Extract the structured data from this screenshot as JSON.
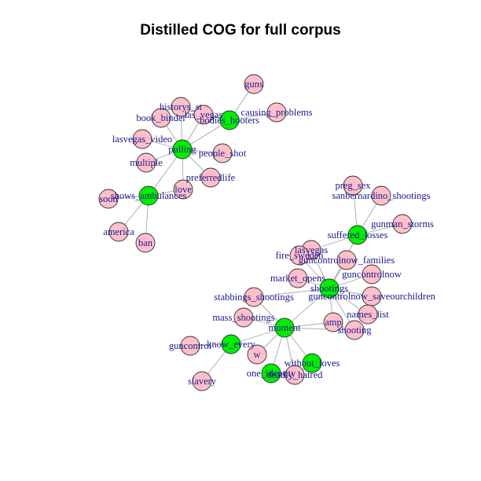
{
  "title": "Distilled COG for full corpus",
  "colors": {
    "hub": "#00ee00",
    "leaf": "#ffc0cb",
    "label": "#1a1a8c",
    "edge": "#a6a6a6"
  },
  "nodes": [
    {
      "id": "guns",
      "hub": false
    },
    {
      "id": "historys_st",
      "hub": false
    },
    {
      "id": "book_binder",
      "hub": false
    },
    {
      "id": "las_vegas",
      "hub": false
    },
    {
      "id": "causing_problems",
      "hub": false
    },
    {
      "id": "bodies_hooters",
      "hub": true
    },
    {
      "id": "lasvegas_video",
      "hub": false
    },
    {
      "id": "pulling",
      "hub": true
    },
    {
      "id": "people_shot",
      "hub": false
    },
    {
      "id": "multiple",
      "hub": false
    },
    {
      "id": "preferredlife",
      "hub": false
    },
    {
      "id": "love",
      "hub": false
    },
    {
      "id": "shows_ambulances",
      "hub": true
    },
    {
      "id": "soon",
      "hub": false
    },
    {
      "id": "america",
      "hub": false
    },
    {
      "id": "ban",
      "hub": false
    },
    {
      "id": "preg_sex",
      "hub": false
    },
    {
      "id": "sanbernardino_shootings",
      "hub": false
    },
    {
      "id": "gunman_storms",
      "hub": false
    },
    {
      "id": "suffered_losses",
      "hub": true
    },
    {
      "id": "lasvegas",
      "hub": false
    },
    {
      "id": "fire_sweden",
      "hub": false
    },
    {
      "id": "guncontrolnow_families",
      "hub": false
    },
    {
      "id": "guncontrolnow",
      "hub": false
    },
    {
      "id": "market_opens",
      "hub": false
    },
    {
      "id": "shootings",
      "hub": true
    },
    {
      "id": "stabbings_shootings",
      "hub": false
    },
    {
      "id": "guncontrolnow_saveourchildren",
      "hub": false
    },
    {
      "id": "names_list",
      "hub": false
    },
    {
      "id": "mass_shootings",
      "hub": false
    },
    {
      "id": "moment",
      "hub": true
    },
    {
      "id": "amp",
      "hub": false
    },
    {
      "id": "shooting",
      "hub": false
    },
    {
      "id": "guncontrol",
      "hub": false
    },
    {
      "id": "know_every",
      "hub": true
    },
    {
      "id": "w",
      "hub": false
    },
    {
      "id": "without_loves",
      "hub": true
    },
    {
      "id": "one_identity",
      "hub": true
    },
    {
      "id": "deadly_hatred",
      "hub": false
    },
    {
      "id": "slavery",
      "hub": false
    }
  ],
  "edges": [
    [
      "guns",
      "bodies_hooters"
    ],
    [
      "causing_problems",
      "bodies_hooters"
    ],
    [
      "historys_st",
      "bodies_hooters"
    ],
    [
      "las_vegas",
      "bodies_hooters"
    ],
    [
      "bodies_hooters",
      "pulling"
    ],
    [
      "book_binder",
      "pulling"
    ],
    [
      "historys_st",
      "pulling"
    ],
    [
      "las_vegas",
      "pulling"
    ],
    [
      "lasvegas_video",
      "pulling"
    ],
    [
      "people_shot",
      "pulling"
    ],
    [
      "multiple",
      "pulling"
    ],
    [
      "preferredlife",
      "pulling"
    ],
    [
      "love",
      "pulling"
    ],
    [
      "pulling",
      "shows_ambulances"
    ],
    [
      "soon",
      "shows_ambulances"
    ],
    [
      "america",
      "shows_ambulances"
    ],
    [
      "ban",
      "shows_ambulances"
    ],
    [
      "love",
      "shows_ambulances"
    ],
    [
      "preg_sex",
      "suffered_losses"
    ],
    [
      "sanbernardino_shootings",
      "suffered_losses"
    ],
    [
      "gunman_storms",
      "suffered_losses"
    ],
    [
      "lasvegas",
      "suffered_losses"
    ],
    [
      "suffered_losses",
      "shootings"
    ],
    [
      "lasvegas",
      "shootings"
    ],
    [
      "fire_sweden",
      "shootings"
    ],
    [
      "guncontrolnow_families",
      "shootings"
    ],
    [
      "guncontrolnow",
      "shootings"
    ],
    [
      "market_opens",
      "shootings"
    ],
    [
      "stabbings_shootings",
      "shootings"
    ],
    [
      "guncontrolnow_saveourchildren",
      "shootings"
    ],
    [
      "names_list",
      "shootings"
    ],
    [
      "amp",
      "shootings"
    ],
    [
      "shooting",
      "shootings"
    ],
    [
      "shootings",
      "moment"
    ],
    [
      "mass_shootings",
      "moment"
    ],
    [
      "stabbings_shootings",
      "moment"
    ],
    [
      "amp",
      "moment"
    ],
    [
      "shooting",
      "moment"
    ],
    [
      "moment",
      "know_every"
    ],
    [
      "moment",
      "w"
    ],
    [
      "moment",
      "without_loves"
    ],
    [
      "moment",
      "one_identity"
    ],
    [
      "moment",
      "deadly_hatred"
    ],
    [
      "guncontrol",
      "know_every"
    ],
    [
      "slavery",
      "know_every"
    ],
    [
      "one_identity",
      "deadly_hatred"
    ],
    [
      "without_loves",
      "deadly_hatred"
    ]
  ]
}
